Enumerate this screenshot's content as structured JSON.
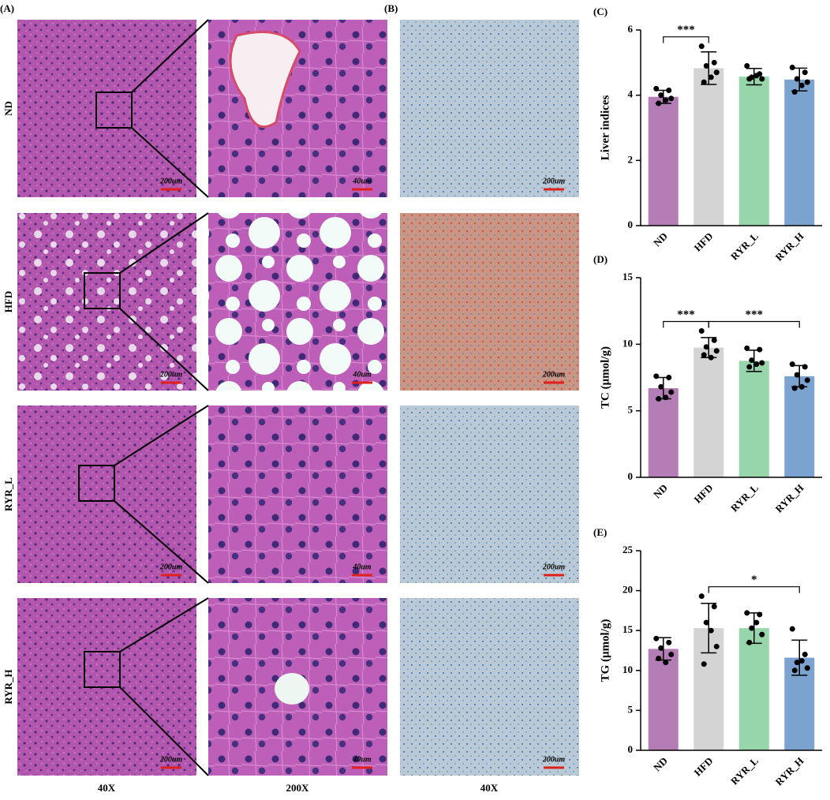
{
  "panel_labels": [
    "(A)",
    "(B)"
  ],
  "micrographs": {
    "rows": [
      {
        "label": "ND",
        "scale_bars": [
          "200um",
          "40um",
          "200um"
        ]
      },
      {
        "label": "HFD",
        "scale_bars": [
          "200um",
          "40um",
          "200um"
        ]
      },
      {
        "label": "RYR_L",
        "scale_bars": [
          "200um",
          "40um",
          "200um"
        ]
      },
      {
        "label": "RYR_H",
        "scale_bars": [
          "200um",
          "40um",
          "200um"
        ]
      }
    ],
    "column_labels": [
      "40X",
      "200X",
      "40X"
    ]
  },
  "chart_data": [
    {
      "type": "bar",
      "panel": "(C)",
      "y_label": "Liver indices",
      "categories": [
        "ND",
        "HFD",
        "RYR_L",
        "RYR_H"
      ],
      "colors": [
        "#b47db6",
        "#d4d4d4",
        "#96d6aa",
        "#7ba3cf"
      ],
      "values": [
        3.95,
        4.83,
        4.57,
        4.48
      ],
      "errors": [
        0.2,
        0.5,
        0.25,
        0.35
      ],
      "points": [
        [
          4.2,
          4.15,
          4.0,
          3.9,
          3.75,
          3.85
        ],
        [
          5.5,
          5.0,
          4.9,
          4.7,
          4.4,
          4.55
        ],
        [
          4.9,
          4.65,
          4.55,
          4.5,
          4.5,
          4.6
        ],
        [
          4.85,
          4.7,
          4.5,
          4.4,
          4.1,
          4.3
        ]
      ],
      "ylim": [
        0,
        6
      ],
      "yticks": [
        0,
        2,
        4,
        6
      ],
      "annotations": [
        {
          "text": "***",
          "categories": [
            "ND",
            "HFD"
          ]
        }
      ]
    },
    {
      "type": "bar",
      "panel": "(D)",
      "y_label": "TC (μmol/g)",
      "categories": [
        "ND",
        "HFD",
        "RYR_L",
        "RYR_H"
      ],
      "colors": [
        "#b47db6",
        "#d4d4d4",
        "#96d6aa",
        "#7ba3cf"
      ],
      "values": [
        6.7,
        9.75,
        8.75,
        7.6
      ],
      "errors": [
        0.8,
        0.75,
        0.8,
        0.8
      ],
      "points": [
        [
          7.6,
          7.5,
          6.8,
          6.4,
          5.9,
          6.0
        ],
        [
          11.0,
          10.3,
          9.8,
          9.5,
          9.2,
          9.0
        ],
        [
          9.7,
          9.6,
          8.8,
          8.6,
          8.3,
          8.5
        ],
        [
          8.5,
          8.3,
          7.7,
          7.3,
          6.7,
          6.8
        ]
      ],
      "ylim": [
        0,
        15
      ],
      "yticks": [
        0,
        5,
        10,
        15
      ],
      "annotations": [
        {
          "text": "***",
          "categories": [
            "ND",
            "HFD"
          ]
        },
        {
          "text": "***",
          "categories": [
            "HFD",
            "RYR_H"
          ]
        }
      ]
    },
    {
      "type": "bar",
      "panel": "(E)",
      "y_label": "TG (μmol/g)",
      "categories": [
        "ND",
        "HFD",
        "RYR_L",
        "RYR_H"
      ],
      "colors": [
        "#b47db6",
        "#d4d4d4",
        "#96d6aa",
        "#7ba3cf"
      ],
      "values": [
        12.7,
        15.3,
        15.3,
        11.6
      ],
      "errors": [
        1.4,
        3.1,
        1.9,
        2.2
      ],
      "points": [
        [
          14.0,
          13.5,
          12.8,
          12.0,
          11.5,
          11.0
        ],
        [
          19.3,
          18.0,
          16.0,
          13.0,
          10.8,
          15.0
        ],
        [
          17.2,
          17.0,
          15.3,
          14.5,
          13.5,
          16.0
        ],
        [
          15.2,
          12.0,
          11.0,
          10.3,
          10.0,
          11.2
        ]
      ],
      "ylim": [
        0,
        25
      ],
      "yticks": [
        0,
        5,
        10,
        15,
        20,
        25
      ],
      "annotations": [
        {
          "text": "*",
          "categories": [
            "HFD",
            "RYR_H"
          ]
        }
      ]
    }
  ]
}
